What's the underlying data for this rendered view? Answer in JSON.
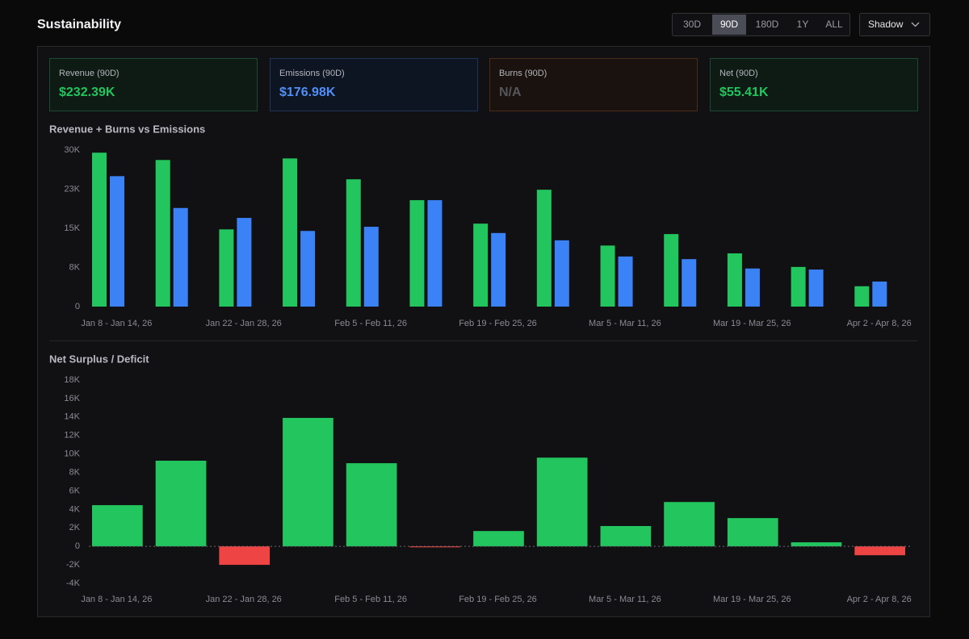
{
  "header": {
    "title": "Sustainability",
    "ranges": [
      "30D",
      "90D",
      "180D",
      "1Y",
      "ALL"
    ],
    "active_range": 1,
    "dropdown": "Shadow"
  },
  "cards": [
    {
      "label": "Revenue (90D)",
      "value": "$232.39K",
      "color": "#22c55e",
      "border": "#1d4a34",
      "background": "#0e1a14"
    },
    {
      "label": "Emissions (90D)",
      "value": "$176.98K",
      "color": "#4f8ff7",
      "border": "#1f3457",
      "background": "#0e1522"
    },
    {
      "label": "Burns (90D)",
      "value": "N/A",
      "color": "#55555c",
      "border": "#4a2c18",
      "background": "#19120e"
    },
    {
      "label": "Net (90D)",
      "value": "$55.41K",
      "color": "#22c55e",
      "border": "#1d4a34",
      "background": "#0e1a14"
    }
  ],
  "chart_data": [
    {
      "type": "bar",
      "title": "Revenue + Burns vs Emissions",
      "categories": [
        "Jan 8 - Jan 14, 26",
        null,
        "Jan 22 - Jan 28, 26",
        null,
        "Feb 5 - Feb 11, 26",
        null,
        "Feb 19 - Feb 25, 26",
        null,
        "Mar 5 - Mar 11, 26",
        null,
        "Mar 19 - Mar 25, 26",
        null,
        "Apr 2 - Apr 8, 26"
      ],
      "series": [
        {
          "color": "#22c55e",
          "values": [
            29500,
            28100,
            14800,
            28400,
            24400,
            20400,
            15900,
            22400,
            11700,
            13900,
            10200,
            7600,
            3900
          ]
        },
        {
          "color": "#3b82f6",
          "values": [
            25000,
            18900,
            17000,
            14500,
            15300,
            20400,
            14100,
            12700,
            9600,
            9100,
            7300,
            7100,
            4800
          ]
        }
      ],
      "ylim": [
        0,
        30000
      ],
      "yticks": [
        0,
        {
          "value": 7500,
          "label": "8K"
        },
        {
          "value": 15000,
          "label": "15K"
        },
        {
          "value": 22500,
          "label": "23K"
        },
        {
          "value": 30000,
          "label": "30K"
        }
      ]
    },
    {
      "type": "bar",
      "title": "Net Surplus / Deficit",
      "categories": [
        "Jan 8 - Jan 14, 26",
        null,
        "Jan 22 - Jan 28, 26",
        null,
        "Feb 5 - Feb 11, 26",
        null,
        "Feb 19 - Feb 25, 26",
        null,
        "Mar 5 - Mar 11, 26",
        null,
        "Mar 19 - Mar 25, 26",
        null,
        "Apr 2 - Apr 8, 26"
      ],
      "values": [
        4460,
        9270,
        -2000,
        13900,
        9000,
        -100,
        1660,
        9600,
        2200,
        4800,
        3060,
        440,
        -960
      ],
      "color": "#22c55e",
      "negative_color": "#ef4444",
      "ylim": [
        -4000,
        18000
      ],
      "yticks": [
        {
          "value": -4000,
          "label": "-4K"
        },
        {
          "value": -2000,
          "label": "-2K"
        },
        0,
        {
          "value": 2000,
          "label": "2K"
        },
        {
          "value": 4000,
          "label": "4K"
        },
        {
          "value": 6000,
          "label": "6K"
        },
        {
          "value": 8000,
          "label": "8K"
        },
        {
          "value": 10000,
          "label": "10K"
        },
        {
          "value": 12000,
          "label": "12K"
        },
        {
          "value": 14000,
          "label": "14K"
        },
        {
          "value": 16000,
          "label": "16K"
        },
        {
          "value": 18000,
          "label": "18K"
        }
      ]
    }
  ]
}
